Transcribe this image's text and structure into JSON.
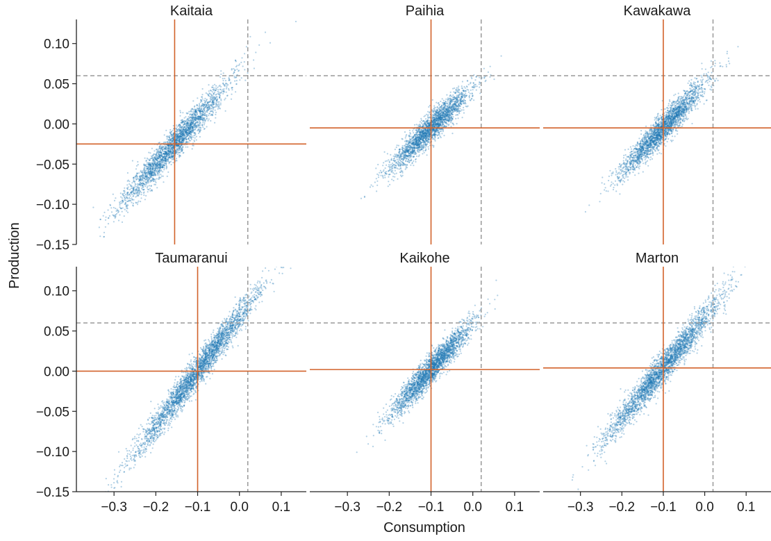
{
  "chart_data": {
    "type": "scatter",
    "layout": "3x2 facet grid, shared axes",
    "xlabel": "Consumption",
    "ylabel": "Production",
    "xlim": [
      -0.39,
      0.16
    ],
    "ylim": [
      -0.15,
      0.13
    ],
    "x_ticks": [
      -0.3,
      -0.2,
      -0.1,
      0.0,
      0.1
    ],
    "x_tick_labels": [
      "−0.3",
      "−0.2",
      "−0.1",
      "0.0",
      "0.1"
    ],
    "y_ticks": [
      0.1,
      0.05,
      0.0,
      -0.05,
      -0.1,
      -0.15
    ],
    "y_tick_labels": [
      "0.10",
      "0.05",
      "0.00",
      "−0.05",
      "−0.10",
      "−0.15"
    ],
    "grid": false,
    "colors": {
      "points": "#1f77b4",
      "mean_lines": "#d2622a",
      "reference_lines": "#999999"
    },
    "reference_lines": {
      "x": 0.02,
      "y": 0.06,
      "style": "dashed gray"
    },
    "panels": [
      {
        "title": "Kaitaia",
        "mean_x": -0.155,
        "mean_y": -0.025,
        "slope": 0.58,
        "x_range": [
          -0.34,
          0.05
        ],
        "n_points": 2600,
        "seed": 11,
        "spread_y": 0.01
      },
      {
        "title": "Paihia",
        "mean_x": -0.1,
        "mean_y": -0.005,
        "slope": 0.5,
        "x_range": [
          -0.25,
          0.04
        ],
        "n_points": 2400,
        "seed": 22,
        "spread_y": 0.009
      },
      {
        "title": "Kawakawa",
        "mean_x": -0.1,
        "mean_y": -0.005,
        "slope": 0.54,
        "x_range": [
          -0.27,
          0.04
        ],
        "n_points": 2500,
        "seed": 33,
        "spread_y": 0.009
      },
      {
        "title": "Taumaranui",
        "mean_x": -0.1,
        "mean_y": 0.0,
        "slope": 0.68,
        "x_range": [
          -0.35,
          0.12
        ],
        "n_points": 3200,
        "seed": 44,
        "spread_y": 0.01
      },
      {
        "title": "Kaikohe",
        "mean_x": -0.1,
        "mean_y": 0.002,
        "slope": 0.56,
        "x_range": [
          -0.24,
          0.05
        ],
        "n_points": 2600,
        "seed": 55,
        "spread_y": 0.009
      },
      {
        "title": "Marton",
        "mean_x": -0.1,
        "mean_y": 0.004,
        "slope": 0.62,
        "x_range": [
          -0.32,
          0.11
        ],
        "n_points": 3000,
        "seed": 66,
        "spread_y": 0.01
      }
    ]
  }
}
